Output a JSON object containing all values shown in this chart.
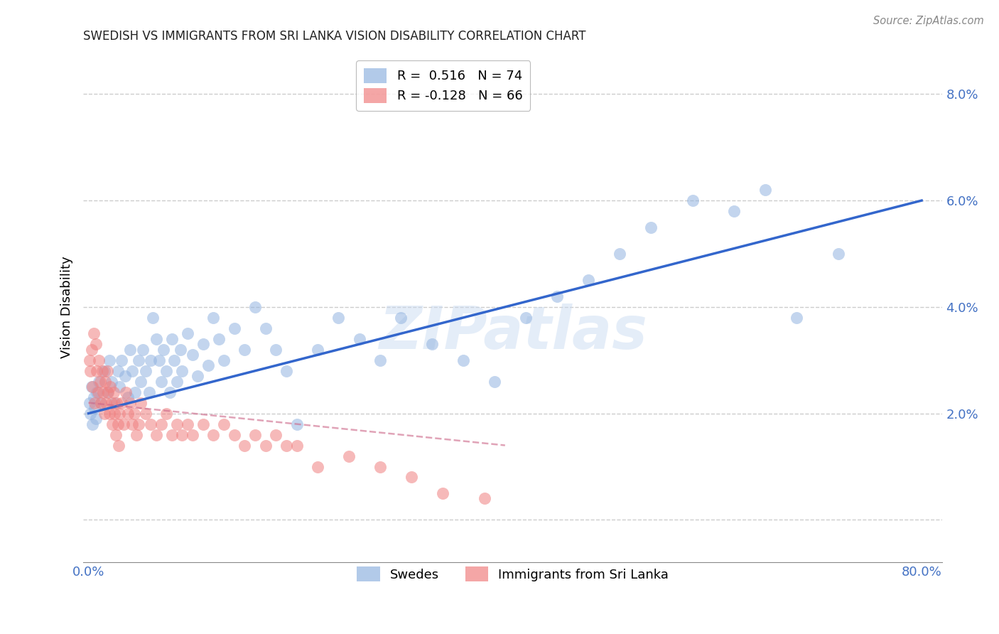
{
  "title": "SWEDISH VS IMMIGRANTS FROM SRI LANKA VISION DISABILITY CORRELATION CHART",
  "source": "Source: ZipAtlas.com",
  "ylabel": "Vision Disability",
  "watermark": "ZIPatlas",
  "swedes_R": 0.516,
  "swedes_N": 74,
  "immigrants_R": -0.128,
  "immigrants_N": 66,
  "blue_color": "#92b4e0",
  "pink_color": "#f08080",
  "blue_line_color": "#3366cc",
  "pink_line_color": "#cc6688",
  "axis_color": "#4472c4",
  "grid_color": "#cccccc",
  "background_color": "#ffffff",
  "xlim": [
    -0.005,
    0.82
  ],
  "ylim": [
    -0.008,
    0.088
  ],
  "ytick_positions": [
    0.0,
    0.02,
    0.04,
    0.06,
    0.08
  ],
  "ytick_labels": [
    "",
    "2.0%",
    "4.0%",
    "6.0%",
    "8.0%"
  ],
  "xtick_positions": [
    0.0,
    0.8
  ],
  "xtick_labels": [
    "0.0%",
    "80.0%"
  ],
  "swedes_x": [
    0.001,
    0.002,
    0.003,
    0.004,
    0.005,
    0.006,
    0.007,
    0.008,
    0.01,
    0.012,
    0.015,
    0.018,
    0.02,
    0.022,
    0.025,
    0.028,
    0.03,
    0.032,
    0.035,
    0.038,
    0.04,
    0.042,
    0.045,
    0.048,
    0.05,
    0.052,
    0.055,
    0.058,
    0.06,
    0.062,
    0.065,
    0.068,
    0.07,
    0.072,
    0.075,
    0.078,
    0.08,
    0.082,
    0.085,
    0.088,
    0.09,
    0.095,
    0.1,
    0.105,
    0.11,
    0.115,
    0.12,
    0.125,
    0.13,
    0.14,
    0.15,
    0.16,
    0.17,
    0.18,
    0.19,
    0.2,
    0.22,
    0.24,
    0.26,
    0.28,
    0.3,
    0.33,
    0.36,
    0.39,
    0.42,
    0.45,
    0.48,
    0.51,
    0.54,
    0.58,
    0.62,
    0.65,
    0.68,
    0.72
  ],
  "swedes_y": [
    0.022,
    0.02,
    0.025,
    0.018,
    0.023,
    0.021,
    0.019,
    0.024,
    0.026,
    0.022,
    0.028,
    0.024,
    0.03,
    0.026,
    0.022,
    0.028,
    0.025,
    0.03,
    0.027,
    0.023,
    0.032,
    0.028,
    0.024,
    0.03,
    0.026,
    0.032,
    0.028,
    0.024,
    0.03,
    0.038,
    0.034,
    0.03,
    0.026,
    0.032,
    0.028,
    0.024,
    0.034,
    0.03,
    0.026,
    0.032,
    0.028,
    0.035,
    0.031,
    0.027,
    0.033,
    0.029,
    0.038,
    0.034,
    0.03,
    0.036,
    0.032,
    0.04,
    0.036,
    0.032,
    0.028,
    0.018,
    0.032,
    0.038,
    0.034,
    0.03,
    0.038,
    0.033,
    0.03,
    0.026,
    0.038,
    0.042,
    0.045,
    0.05,
    0.055,
    0.06,
    0.058,
    0.062,
    0.038,
    0.05
  ],
  "immigrants_x": [
    0.001,
    0.002,
    0.003,
    0.004,
    0.005,
    0.006,
    0.007,
    0.008,
    0.009,
    0.01,
    0.011,
    0.012,
    0.013,
    0.014,
    0.015,
    0.016,
    0.017,
    0.018,
    0.019,
    0.02,
    0.021,
    0.022,
    0.023,
    0.024,
    0.025,
    0.026,
    0.027,
    0.028,
    0.029,
    0.03,
    0.032,
    0.034,
    0.036,
    0.038,
    0.04,
    0.042,
    0.044,
    0.046,
    0.048,
    0.05,
    0.055,
    0.06,
    0.065,
    0.07,
    0.075,
    0.08,
    0.085,
    0.09,
    0.095,
    0.1,
    0.11,
    0.12,
    0.13,
    0.14,
    0.15,
    0.16,
    0.17,
    0.18,
    0.19,
    0.2,
    0.22,
    0.25,
    0.28,
    0.31,
    0.34,
    0.38
  ],
  "immigrants_y": [
    0.03,
    0.028,
    0.032,
    0.025,
    0.035,
    0.022,
    0.033,
    0.028,
    0.024,
    0.03,
    0.026,
    0.022,
    0.028,
    0.024,
    0.02,
    0.026,
    0.022,
    0.028,
    0.024,
    0.02,
    0.025,
    0.022,
    0.018,
    0.024,
    0.02,
    0.016,
    0.022,
    0.018,
    0.014,
    0.02,
    0.022,
    0.018,
    0.024,
    0.02,
    0.022,
    0.018,
    0.02,
    0.016,
    0.018,
    0.022,
    0.02,
    0.018,
    0.016,
    0.018,
    0.02,
    0.016,
    0.018,
    0.016,
    0.018,
    0.016,
    0.018,
    0.016,
    0.018,
    0.016,
    0.014,
    0.016,
    0.014,
    0.016,
    0.014,
    0.014,
    0.01,
    0.012,
    0.01,
    0.008,
    0.005,
    0.004
  ],
  "blue_line_x": [
    0.0,
    0.8
  ],
  "blue_line_y": [
    0.02,
    0.06
  ],
  "pink_line_x": [
    0.0,
    0.4
  ],
  "pink_line_y": [
    0.022,
    0.014
  ]
}
